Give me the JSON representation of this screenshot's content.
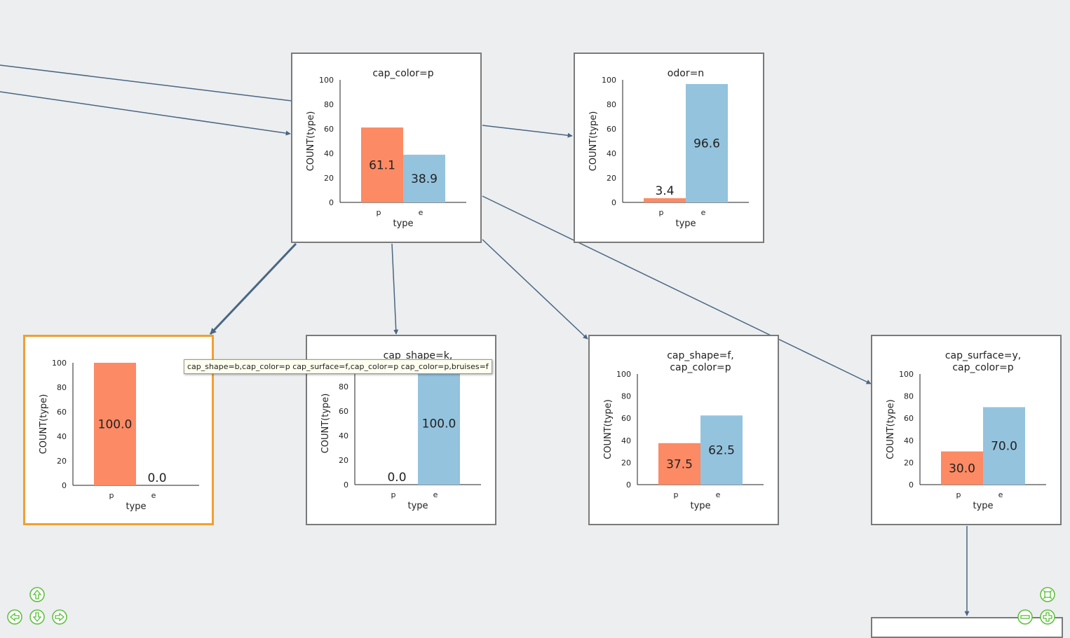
{
  "tooltip": "cap_shape=b,cap_color=p cap_surface=f,cap_color=p cap_color=p,bruises=f",
  "colors": {
    "p": "#fc8a64",
    "e": "#94c3de",
    "edge": "#4a6681",
    "selected": "#f0a030",
    "nav": "#5bbf3a"
  },
  "chart_data": [
    {
      "id": "n1",
      "type": "bar",
      "title": [
        "cap_color=p"
      ],
      "categories": [
        "p",
        "e"
      ],
      "values": [
        61.1,
        38.9
      ],
      "xlabel": "type",
      "ylabel": "COUNT(type)",
      "ylim": [
        0,
        100
      ],
      "yticks": [
        0,
        20,
        40,
        60,
        80,
        100
      ],
      "labels": [
        "61.1",
        "38.9"
      ]
    },
    {
      "id": "n2",
      "type": "bar",
      "title": [
        "odor=n"
      ],
      "categories": [
        "p",
        "e"
      ],
      "values": [
        3.4,
        96.6
      ],
      "xlabel": "type",
      "ylabel": "COUNT(type)",
      "ylim": [
        0,
        100
      ],
      "yticks": [
        0,
        20,
        40,
        60,
        80,
        100
      ],
      "labels": [
        "3.4",
        "96.6"
      ]
    },
    {
      "id": "n3",
      "type": "bar",
      "title": [],
      "categories": [
        "p",
        "e"
      ],
      "values": [
        100.0,
        0.0
      ],
      "xlabel": "type",
      "ylabel": "COUNT(type)",
      "ylim": [
        0,
        100
      ],
      "yticks": [
        0,
        20,
        40,
        60,
        80,
        100
      ],
      "labels": [
        "100.0",
        "0.0"
      ],
      "selected": true
    },
    {
      "id": "n4",
      "type": "bar",
      "title": [
        "cap_shape=k,"
      ],
      "categories": [
        "p",
        "e"
      ],
      "values": [
        0.0,
        100.0
      ],
      "xlabel": "type",
      "ylabel": "COUNT(type)",
      "ylim": [
        0,
        100
      ],
      "yticks": [
        0,
        20,
        40,
        60,
        80,
        100
      ],
      "labels": [
        "0.0",
        "100.0"
      ]
    },
    {
      "id": "n5",
      "type": "bar",
      "title": [
        "cap_shape=f,",
        "cap_color=p"
      ],
      "categories": [
        "p",
        "e"
      ],
      "values": [
        37.5,
        62.5
      ],
      "xlabel": "type",
      "ylabel": "COUNT(type)",
      "ylim": [
        0,
        100
      ],
      "yticks": [
        0,
        20,
        40,
        60,
        80,
        100
      ],
      "labels": [
        "37.5",
        "62.5"
      ]
    },
    {
      "id": "n6",
      "type": "bar",
      "title": [
        "cap_surface=y,",
        "cap_color=p"
      ],
      "categories": [
        "p",
        "e"
      ],
      "values": [
        30.0,
        70.0
      ],
      "xlabel": "type",
      "ylabel": "COUNT(type)",
      "ylim": [
        0,
        100
      ],
      "yticks": [
        0,
        20,
        40,
        60,
        80,
        100
      ],
      "labels": [
        "30.0",
        "70.0"
      ]
    }
  ],
  "nav": [
    "up-arrow-icon",
    "left-arrow-icon",
    "down-arrow-icon",
    "right-arrow-icon",
    "fit-view-icon",
    "zoom-out-icon",
    "zoom-in-icon"
  ]
}
